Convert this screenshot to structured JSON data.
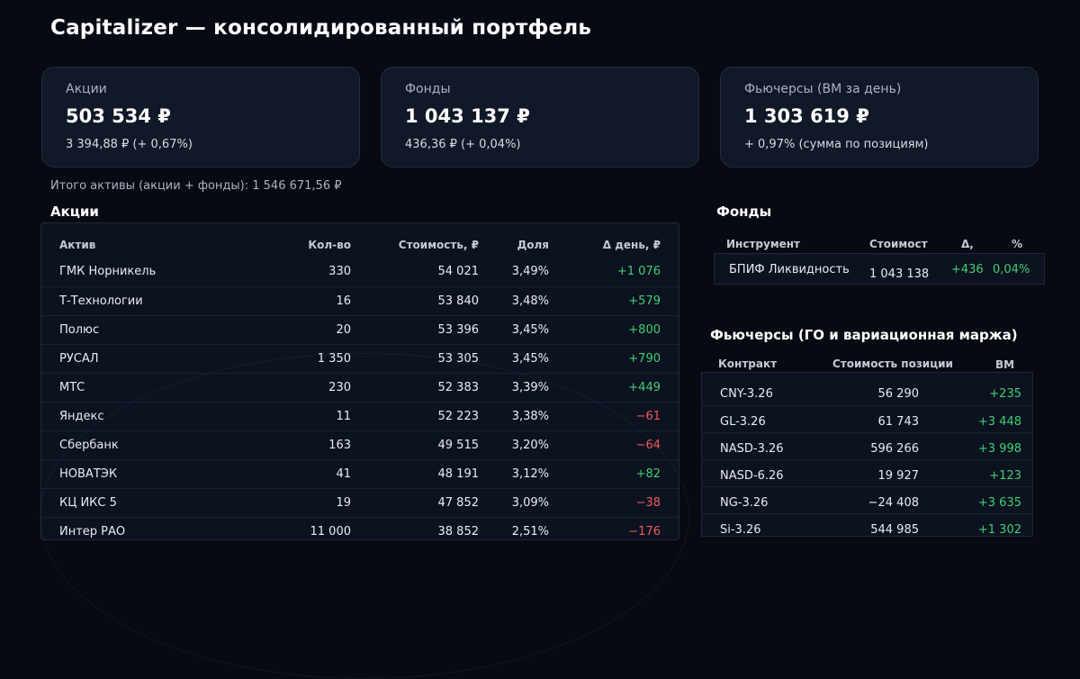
{
  "page_title": "Capitalizer — консолидированный портфель",
  "cards": [
    {
      "label": "Акции",
      "value": "503 534 ₽",
      "delta": "3 394,88 ₽  (+ 0,67%)"
    },
    {
      "label": "Фонды",
      "value": "1 043 137 ₽",
      "delta": "436,36 ₽  (+ 0,04%)"
    },
    {
      "label": "Фьючерсы (ВМ за день)",
      "value": "1 303 619 ₽",
      "delta": "+ 0,97%  (сумма по позициям)"
    }
  ],
  "total_line": "Итого активы (акции + фонды): 1 546 671,56 ₽",
  "stocks": {
    "title": "Акции",
    "headers": {
      "asset": "Актив",
      "qty": "Кол-во",
      "value": "Стоимость, ₽",
      "share": "Доля",
      "delta": "Δ день, ₽"
    },
    "rows": [
      {
        "asset": "ГМК Норникель",
        "qty": "330",
        "value": "54 021",
        "share": "3,49%",
        "delta": "+1 076",
        "dir": "pos"
      },
      {
        "asset": "Т-Технологии",
        "qty": "16",
        "value": "53 840",
        "share": "3,48%",
        "delta": "+579",
        "dir": "pos"
      },
      {
        "asset": "Полюс",
        "qty": "20",
        "value": "53 396",
        "share": "3,45%",
        "delta": "+800",
        "dir": "pos"
      },
      {
        "asset": "РУСАЛ",
        "qty": "1 350",
        "value": "53 305",
        "share": "3,45%",
        "delta": "+790",
        "dir": "pos"
      },
      {
        "asset": "МТС",
        "qty": "230",
        "value": "52 383",
        "share": "3,39%",
        "delta": "+449",
        "dir": "pos"
      },
      {
        "asset": "Яндекс",
        "qty": "11",
        "value": "52 223",
        "share": "3,38%",
        "delta": "−61",
        "dir": "neg"
      },
      {
        "asset": "Сбербанк",
        "qty": "163",
        "value": "49 515",
        "share": "3,20%",
        "delta": "−64",
        "dir": "neg"
      },
      {
        "asset": "НОВАТЭК",
        "qty": "41",
        "value": "48 191",
        "share": "3,12%",
        "delta": "+82",
        "dir": "pos"
      },
      {
        "asset": "КЦ ИКС 5",
        "qty": "19",
        "value": "47 852",
        "share": "3,09%",
        "delta": "−38",
        "dir": "neg"
      },
      {
        "asset": "Интер РАО",
        "qty": "11 000",
        "value": "38 852",
        "share": "2,51%",
        "delta": "−176",
        "dir": "neg"
      }
    ]
  },
  "funds": {
    "title": "Фонды",
    "headers": {
      "instrument": "Инструмент",
      "value": "Стоимост",
      "delta": "Δ,",
      "pct": "%"
    },
    "rows": [
      {
        "instrument": "БПИФ Ликвидность",
        "value": "1 043 138",
        "delta": "+436",
        "pct": "0,04%"
      }
    ]
  },
  "futures": {
    "title": "Фьючерсы (ГО и вариационная маржа)",
    "headers": {
      "contract": "Контракт",
      "value": "Стоимость позиции",
      "vm": "ВМ"
    },
    "rows": [
      {
        "contract": "CNY-3.26",
        "value": "56 290",
        "vm": "+235",
        "dir": "pos"
      },
      {
        "contract": "GL-3.26",
        "value": "61 743",
        "vm": "+3 448",
        "dir": "pos"
      },
      {
        "contract": "NASD-3.26",
        "value": "596 266",
        "vm": "+3 998",
        "dir": "pos"
      },
      {
        "contract": "NASD-6.26",
        "value": "19 927",
        "vm": "+123",
        "dir": "pos"
      },
      {
        "contract": "NG-3.26",
        "value": "−24 408",
        "vm": "+3 635",
        "dir": "pos"
      },
      {
        "contract": "Si-3.26",
        "value": "544 985",
        "vm": "+1 302",
        "dir": "pos"
      }
    ]
  },
  "colors": {
    "positive": "#3ecf73",
    "negative": "#ef5b5b",
    "background": "#070a12",
    "card": "#111827"
  }
}
